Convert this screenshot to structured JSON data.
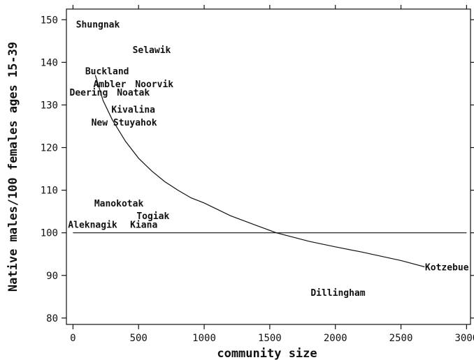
{
  "chart_data": {
    "type": "scatter",
    "title": "",
    "xlabel": "community size",
    "ylabel": "Native males/100 females ages 15-39",
    "xlim": [
      -50,
      3030
    ],
    "ylim": [
      78.5,
      152.5
    ],
    "xticks": [
      0,
      500,
      1000,
      1500,
      2000,
      2500,
      3000
    ],
    "yticks": [
      80,
      90,
      100,
      110,
      120,
      130,
      140,
      150
    ],
    "grid": false,
    "legend": "none",
    "points": [
      {
        "label": "Shungnak",
        "x": 190,
        "y": 149
      },
      {
        "label": "Selawik",
        "x": 600,
        "y": 143
      },
      {
        "label": "Buckland",
        "x": 260,
        "y": 138
      },
      {
        "label": "Ambler",
        "x": 280,
        "y": 135
      },
      {
        "label": "Noorvik",
        "x": 620,
        "y": 135
      },
      {
        "label": "Deering",
        "x": 120,
        "y": 133
      },
      {
        "label": "Noatak",
        "x": 460,
        "y": 133
      },
      {
        "label": "Kivalina",
        "x": 460,
        "y": 129
      },
      {
        "label": "New Stuyahok",
        "x": 390,
        "y": 126
      },
      {
        "label": "Manokotak",
        "x": 350,
        "y": 107
      },
      {
        "label": "Togiak",
        "x": 610,
        "y": 104
      },
      {
        "label": "Aleknagik",
        "x": 150,
        "y": 102
      },
      {
        "label": "Kiana",
        "x": 540,
        "y": 102
      },
      {
        "label": "Kotzebue",
        "x": 2850,
        "y": 92
      },
      {
        "label": "Dillingham",
        "x": 2020,
        "y": 86
      }
    ],
    "fitted_curve": {
      "x": [
        170,
        230,
        300,
        400,
        500,
        600,
        700,
        800,
        900,
        1000,
        1200,
        1400,
        1550,
        1800,
        2000,
        2200,
        2500,
        2680
      ],
      "y": [
        137,
        131,
        126.5,
        121.5,
        117.5,
        114.5,
        112,
        110,
        108.2,
        107,
        104,
        101.7,
        100,
        98,
        96.7,
        95.5,
        93.5,
        92
      ]
    },
    "reference_line": {
      "y": 100,
      "x": [
        0,
        3000
      ]
    },
    "colors": {
      "ink": "#111111",
      "background": "#ffffff"
    }
  }
}
